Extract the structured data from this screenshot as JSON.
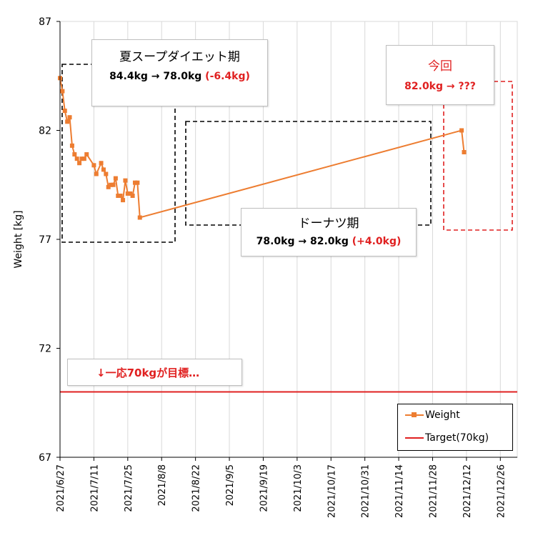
{
  "chart_data": {
    "type": "line",
    "ylabel": "Weight [kg]",
    "ylim": [
      67,
      87
    ],
    "yticks": [
      67,
      72,
      77,
      82,
      87
    ],
    "xlim_days": [
      0,
      189
    ],
    "xtick_labels": [
      "2021/6/27",
      "2021/7/11",
      "2021/7/25",
      "2021/8/8",
      "2021/8/22",
      "2021/9/5",
      "2021/9/19",
      "2021/10/3",
      "2021/10/17",
      "2021/10/31",
      "2021/11/14",
      "2021/11/28",
      "2021/12/12",
      "2021/12/26"
    ],
    "series": [
      {
        "name": "Weight",
        "color": "#ed7d31",
        "x_days": [
          0,
          1,
          2,
          3,
          4,
          5,
          6,
          7,
          8,
          9,
          10,
          11,
          14,
          15,
          17,
          18,
          19,
          20,
          21,
          22,
          23,
          24,
          25,
          26,
          27,
          28,
          29,
          30,
          31,
          32,
          33,
          166,
          167
        ],
        "values": [
          84.4,
          83.8,
          82.9,
          82.4,
          82.6,
          81.3,
          80.9,
          80.7,
          80.5,
          80.7,
          80.7,
          80.9,
          80.4,
          80.0,
          80.5,
          80.2,
          80.0,
          79.4,
          79.5,
          79.5,
          79.8,
          79.0,
          79.0,
          78.8,
          79.7,
          79.1,
          79.1,
          79.0,
          79.6,
          79.6,
          78.0,
          82.0,
          81.0
        ]
      },
      {
        "name": "Target(70kg)",
        "color": "#e02020",
        "values": [
          70,
          70
        ]
      }
    ]
  },
  "annotations": {
    "summer": {
      "title": "夏スープダイエット期",
      "line_black": "84.4kg → 78.0kg ",
      "line_red": "(-6.4kg)"
    },
    "donut": {
      "title": "ドーナツ期",
      "line_black": "78.0kg → 82.0kg ",
      "line_red": "(+4.0kg)"
    },
    "current": {
      "title": "今回",
      "line_red": "82.0kg → ???"
    },
    "target_note": "↓一応70kgが目標…"
  },
  "legend": {
    "weight_label": "Weight",
    "target_label": "Target(70kg)"
  }
}
